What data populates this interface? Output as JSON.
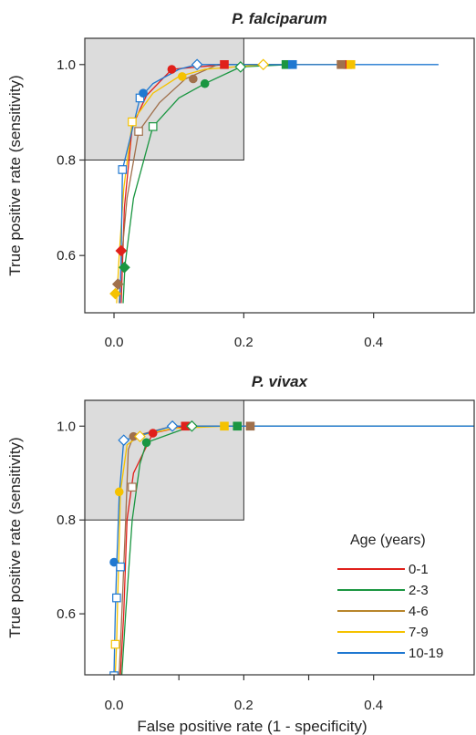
{
  "chart_data": [
    {
      "type": "line",
      "title": "P. falciparum",
      "xlabel": "",
      "ylabel": "True positive rate (sensitivity)",
      "xlim": [
        -0.045,
        0.555
      ],
      "ylim": [
        0.48,
        1.055
      ],
      "xticks": [
        0.0,
        0.2,
        0.4
      ],
      "xtick_labels": [
        "0.0",
        "0.2",
        "0.4"
      ],
      "yticks": [
        0.6,
        0.8,
        1.0
      ],
      "ytick_labels": [
        "0.6",
        "0.8",
        "1.0"
      ],
      "shaded_region": {
        "x": [
          -0.045,
          0.2
        ],
        "y": [
          0.8,
          1.055
        ]
      },
      "grid": false,
      "series": [
        {
          "color": "#e0201b",
          "marker": "circle",
          "points": [
            [
              0.011,
              0.5
            ],
            [
              0.013,
              0.58
            ],
            [
              0.016,
              0.7
            ],
            [
              0.028,
              0.87
            ],
            [
              0.05,
              0.935
            ],
            [
              0.089,
              0.99
            ],
            [
              0.17,
              1.0
            ],
            [
              0.36,
              1.0
            ]
          ],
          "markers": [
            [
              0.011,
              0.61,
              "diamond",
              "fill"
            ],
            [
              0.089,
              0.99,
              "circle",
              "fill"
            ],
            [
              0.17,
              1.0,
              "square",
              "fill"
            ],
            [
              0.36,
              1.0,
              "square",
              "fill"
            ]
          ]
        },
        {
          "color": "#1a9641",
          "marker": "circle",
          "points": [
            [
              0.014,
              0.5
            ],
            [
              0.017,
              0.58
            ],
            [
              0.03,
              0.72
            ],
            [
              0.06,
              0.87
            ],
            [
              0.1,
              0.93
            ],
            [
              0.14,
              0.96
            ],
            [
              0.195,
              0.995
            ],
            [
              0.27,
              1.0
            ]
          ],
          "markers": [
            [
              0.016,
              0.575,
              "diamond",
              "fill"
            ],
            [
              0.06,
              0.87,
              "square",
              "open"
            ],
            [
              0.14,
              0.96,
              "circle",
              "fill"
            ],
            [
              0.195,
              0.995,
              "diamond",
              "open"
            ],
            [
              0.265,
              1.0,
              "square",
              "fill"
            ]
          ]
        },
        {
          "color": "#a0704c",
          "marker": "circle",
          "points": [
            [
              0.008,
              0.5
            ],
            [
              0.012,
              0.6
            ],
            [
              0.02,
              0.72
            ],
            [
              0.038,
              0.86
            ],
            [
              0.07,
              0.92
            ],
            [
              0.11,
              0.97
            ],
            [
              0.16,
              1.0
            ],
            [
              0.35,
              1.0
            ]
          ],
          "markers": [
            [
              0.006,
              0.54,
              "diamond",
              "fill"
            ],
            [
              0.038,
              0.86,
              "square",
              "open"
            ],
            [
              0.122,
              0.97,
              "circle",
              "fill"
            ],
            [
              0.35,
              1.0,
              "square",
              "fill"
            ]
          ]
        },
        {
          "color": "#f5c200",
          "marker": "circle",
          "points": [
            [
              0.004,
              0.5
            ],
            [
              0.008,
              0.6
            ],
            [
              0.015,
              0.74
            ],
            [
              0.028,
              0.88
            ],
            [
              0.06,
              0.94
            ],
            [
              0.1,
              0.975
            ],
            [
              0.14,
              0.99
            ],
            [
              0.23,
              1.0
            ],
            [
              0.36,
              1.0
            ]
          ],
          "markers": [
            [
              0.002,
              0.52,
              "diamond",
              "fill"
            ],
            [
              0.028,
              0.88,
              "square",
              "open"
            ],
            [
              0.105,
              0.975,
              "circle",
              "fill"
            ],
            [
              0.23,
              1.0,
              "diamond",
              "open"
            ],
            [
              0.365,
              1.0,
              "square",
              "fill"
            ]
          ]
        },
        {
          "color": "#1f78d1",
          "marker": "circle",
          "points": [
            [
              0.009,
              0.5
            ],
            [
              0.011,
              0.6
            ],
            [
              0.013,
              0.78
            ],
            [
              0.04,
              0.93
            ],
            [
              0.06,
              0.96
            ],
            [
              0.1,
              0.99
            ],
            [
              0.128,
              1.0
            ],
            [
              0.5,
              1.0
            ]
          ],
          "markers": [
            [
              0.013,
              0.78,
              "square",
              "open"
            ],
            [
              0.04,
              0.93,
              "square",
              "open"
            ],
            [
              0.045,
              0.94,
              "circle",
              "fill"
            ],
            [
              0.128,
              1.0,
              "diamond",
              "open"
            ],
            [
              0.275,
              1.0,
              "square",
              "fill"
            ]
          ]
        }
      ]
    },
    {
      "type": "line",
      "title": "P. vivax",
      "xlabel": "False positive rate (1 - specificity)",
      "ylabel": "True positive rate (sensitivity)",
      "xlim": [
        -0.045,
        0.555
      ],
      "ylim": [
        0.47,
        1.055
      ],
      "xticks": [
        0.0,
        0.2,
        0.4
      ],
      "xtick_labels": [
        "0.0",
        "0.2",
        "0.4"
      ],
      "minor_xticks": [
        0.1,
        0.3
      ],
      "yticks": [
        0.6,
        0.8,
        1.0
      ],
      "ytick_labels": [
        "0.6",
        "0.8",
        "1.0"
      ],
      "shaded_region": {
        "x": [
          -0.045,
          0.2
        ],
        "y": [
          0.8,
          1.055
        ]
      },
      "grid": false,
      "legend": {
        "title": "Age (years)",
        "position": "right",
        "entries": [
          {
            "label": "0-1",
            "color": "#e0201b"
          },
          {
            "label": "2-3",
            "color": "#1a9641"
          },
          {
            "label": "4-6",
            "color": "#b8862b"
          },
          {
            "label": "7-9",
            "color": "#f5c200"
          },
          {
            "label": "10-19",
            "color": "#1f78d1"
          }
        ]
      },
      "series": [
        {
          "color": "#e0201b",
          "marker": "circle",
          "points": [
            [
              0.01,
              0.47
            ],
            [
              0.015,
              0.6
            ],
            [
              0.02,
              0.8
            ],
            [
              0.03,
              0.9
            ],
            [
              0.06,
              0.985
            ],
            [
              0.11,
              1.0
            ],
            [
              0.555,
              1.0
            ]
          ],
          "markers": [
            [
              0.06,
              0.985,
              "circle",
              "fill"
            ],
            [
              0.11,
              1.0,
              "square",
              "fill"
            ]
          ]
        },
        {
          "color": "#1a9641",
          "marker": "circle",
          "points": [
            [
              0.012,
              0.47
            ],
            [
              0.018,
              0.6
            ],
            [
              0.028,
              0.8
            ],
            [
              0.04,
              0.92
            ],
            [
              0.05,
              0.965
            ],
            [
              0.1,
              0.99
            ],
            [
              0.12,
              1.0
            ],
            [
              0.555,
              1.0
            ]
          ],
          "markers": [
            [
              0.05,
              0.965,
              "circle",
              "fill"
            ],
            [
              0.12,
              1.0,
              "diamond",
              "open"
            ],
            [
              0.19,
              1.0,
              "square",
              "fill"
            ]
          ]
        },
        {
          "color": "#a0704c",
          "marker": "circle",
          "points": [
            [
              0.008,
              0.47
            ],
            [
              0.012,
              0.6
            ],
            [
              0.018,
              0.8
            ],
            [
              0.022,
              0.95
            ],
            [
              0.03,
              0.978
            ],
            [
              0.09,
              1.0
            ],
            [
              0.21,
              1.0
            ]
          ],
          "markers": [
            [
              0.028,
              0.87,
              "square",
              "open"
            ],
            [
              0.03,
              0.978,
              "circle",
              "fill"
            ],
            [
              0.21,
              1.0,
              "square",
              "fill"
            ]
          ]
        },
        {
          "color": "#f5c200",
          "marker": "circle",
          "points": [
            [
              0.002,
              0.47
            ],
            [
              0.004,
              0.54
            ],
            [
              0.006,
              0.65
            ],
            [
              0.01,
              0.86
            ],
            [
              0.02,
              0.96
            ],
            [
              0.04,
              0.98
            ],
            [
              0.09,
              0.995
            ],
            [
              0.17,
              1.0
            ]
          ],
          "markers": [
            [
              0.002,
              0.535,
              "square",
              "open"
            ],
            [
              0.008,
              0.86,
              "circle",
              "fill"
            ],
            [
              0.04,
              0.978,
              "diamond",
              "open"
            ],
            [
              0.17,
              1.0,
              "square",
              "fill"
            ]
          ]
        },
        {
          "color": "#1f78d1",
          "marker": "circle",
          "points": [
            [
              0.0,
              0.47
            ],
            [
              0.002,
              0.6
            ],
            [
              0.004,
              0.7
            ],
            [
              0.008,
              0.85
            ],
            [
              0.015,
              0.97
            ],
            [
              0.09,
              1.0
            ],
            [
              0.555,
              1.0
            ]
          ],
          "markers": [
            [
              0.0,
              0.468,
              "square",
              "open"
            ],
            [
              0.004,
              0.634,
              "square",
              "open"
            ],
            [
              0.0,
              0.71,
              "circle",
              "fill"
            ],
            [
              0.01,
              0.7,
              "square",
              "open"
            ],
            [
              0.015,
              0.97,
              "diamond",
              "open"
            ],
            [
              0.09,
              1.0,
              "diamond",
              "open"
            ]
          ]
        }
      ]
    }
  ]
}
